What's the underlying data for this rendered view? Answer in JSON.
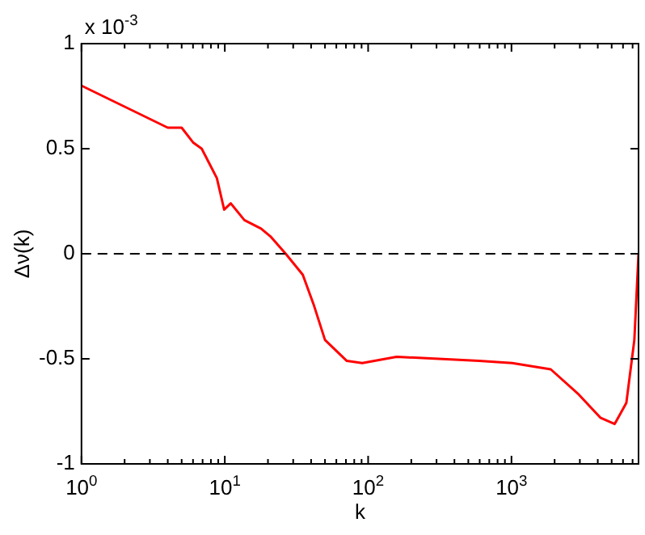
{
  "chart_data": {
    "type": "line",
    "xlabel": "k",
    "ylabel": "Δν(k)",
    "log": "x",
    "grid": false,
    "legend": false,
    "marker": "none",
    "line_style": "solid",
    "xlim": [
      1,
      7700
    ],
    "ylim": [
      -1,
      1
    ],
    "xticks": [
      {
        "value": 1,
        "label": "10$^{0}$"
      },
      {
        "value": 2,
        "label": null
      },
      {
        "value": 3,
        "label": null
      },
      {
        "value": 4,
        "label": null
      },
      {
        "value": 5,
        "label": null
      },
      {
        "value": 6,
        "label": null
      },
      {
        "value": 7,
        "label": null
      },
      {
        "value": 8,
        "label": null
      },
      {
        "value": 9,
        "label": null
      },
      {
        "value": 10,
        "label": "10$^{1}$"
      },
      {
        "value": 20,
        "label": null
      },
      {
        "value": 30,
        "label": null
      },
      {
        "value": 40,
        "label": null
      },
      {
        "value": 50,
        "label": null
      },
      {
        "value": 60,
        "label": null
      },
      {
        "value": 70,
        "label": null
      },
      {
        "value": 80,
        "label": null
      },
      {
        "value": 90,
        "label": null
      },
      {
        "value": 100,
        "label": "10$^{2}$"
      },
      {
        "value": 200,
        "label": null
      },
      {
        "value": 300,
        "label": null
      },
      {
        "value": 400,
        "label": null
      },
      {
        "value": 500,
        "label": null
      },
      {
        "value": 600,
        "label": null
      },
      {
        "value": 700,
        "label": null
      },
      {
        "value": 800,
        "label": null
      },
      {
        "value": 900,
        "label": null
      },
      {
        "value": 1000,
        "label": "10$^{3}$"
      },
      {
        "value": 2000,
        "label": null
      },
      {
        "value": 3000,
        "label": null
      },
      {
        "value": 4000,
        "label": null
      },
      {
        "value": 5000,
        "label": null
      },
      {
        "value": 6000,
        "label": null
      },
      {
        "value": 7000,
        "label": null
      }
    ],
    "yticks": [
      -1,
      -0.5,
      0,
      0.5,
      1
    ],
    "annotations": [
      "x 10$^{-3}$"
    ],
    "ref_lines": [
      {
        "axis": "y",
        "value": 0,
        "color": "#000000",
        "line_style": "dashed"
      }
    ],
    "series": [
      {
        "color": "#ff0000",
        "x": [
          1,
          4,
          5,
          6,
          6.9,
          8.8,
          9.9,
          11,
          13.7,
          17.9,
          21,
          26.6,
          35,
          41.6,
          50,
          71,
          91,
          158,
          594,
          1013,
          1880,
          2950,
          4170,
          5250,
          6330,
          7200,
          7700
        ],
        "values": [
          0.8,
          0.6,
          0.6,
          0.53,
          0.5,
          0.36,
          0.21,
          0.24,
          0.16,
          0.12,
          0.08,
          0,
          -0.1,
          -0.24,
          -0.41,
          -0.51,
          -0.52,
          -0.49,
          -0.51,
          -0.52,
          -0.55,
          -0.67,
          -0.78,
          -0.81,
          -0.71,
          -0.41,
          0
        ]
      }
    ]
  }
}
